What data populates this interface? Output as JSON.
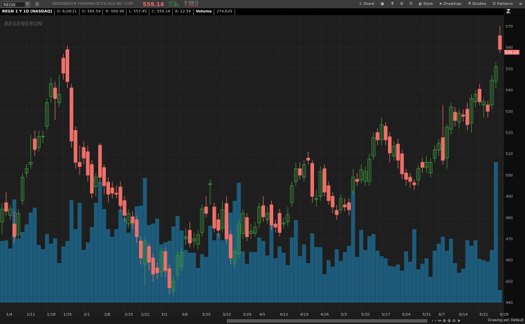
{
  "header": {
    "symbol": "REGN",
    "company": "REGENERON PHARMACEUTICALS INC COM",
    "last_price": "559.14",
    "change": "+8.14",
    "change_pct": "+1.48%",
    "bid": "B: 558.73",
    "ask": "A: 559.55",
    "tools": {
      "share": "Share",
      "style": "Style",
      "drawings": "Drawings",
      "studies": "Studies",
      "patterns": "Patterns",
      "period": "D"
    }
  },
  "info": {
    "title": "REGN 1 Y 1D [NASDAQ]",
    "date": "D: 6/28/21",
    "open": "O: 565.54",
    "high": "H: 569.99",
    "low": "L: 557.45",
    "close": "C: 559.14",
    "range": "R: 12.54",
    "volume_label": "Volume",
    "volume": "274,629"
  },
  "watermark": "REGENERON",
  "footer": {
    "drawing_set": "Drawing set: Default"
  },
  "colors": {
    "up": "#3f9a3f",
    "down": "#f0706a",
    "volume": "#1d5b7a",
    "price_tag": "#f0706a"
  },
  "chart_data": {
    "type": "candlestick",
    "price_label": "559.14",
    "ylim": [
      440,
      570
    ],
    "yticks": [
      440,
      450,
      460,
      470,
      480,
      490,
      500,
      510,
      520,
      530,
      540,
      550,
      560,
      570
    ],
    "xticks": [
      "1/4",
      "1/11",
      "1/18",
      "1/25",
      "2/1",
      "2/8",
      "2/15",
      "2/22",
      "3/1",
      "3/8",
      "3/15",
      "3/22",
      "3/29",
      "4/5",
      "4/12",
      "4/19",
      "4/26",
      "5/3",
      "5/10",
      "5/17",
      "5/24",
      "5/31",
      "6/7",
      "6/14",
      "6/21",
      "6/28"
    ],
    "grid": true,
    "dates": [
      "12/31",
      "1/4",
      "1/5",
      "1/6",
      "1/7",
      "1/8",
      "1/11",
      "1/12",
      "1/13",
      "1/14",
      "1/15",
      "1/19",
      "1/20",
      "1/21",
      "1/22",
      "1/25",
      "1/26",
      "1/27",
      "1/28",
      "1/29",
      "2/1",
      "2/2",
      "2/3",
      "2/4",
      "2/5",
      "2/8",
      "2/9",
      "2/10",
      "2/11",
      "2/12",
      "2/16",
      "2/17",
      "2/18",
      "2/19",
      "2/22",
      "2/23",
      "2/24",
      "2/25",
      "2/26",
      "3/1",
      "3/2",
      "3/3",
      "3/4",
      "3/5",
      "3/8",
      "3/9",
      "3/10",
      "3/11",
      "3/12",
      "3/15",
      "3/16",
      "3/17",
      "3/18",
      "3/19",
      "3/22",
      "3/23",
      "3/24",
      "3/25",
      "3/26",
      "3/29",
      "3/30",
      "3/31",
      "4/1",
      "4/5",
      "4/6",
      "4/7",
      "4/8",
      "4/9",
      "4/12",
      "4/13",
      "4/14",
      "4/15",
      "4/16",
      "4/19",
      "4/20",
      "4/21",
      "4/22",
      "4/23",
      "4/26",
      "4/27",
      "4/28",
      "4/29",
      "4/30",
      "5/3",
      "5/4",
      "5/5",
      "5/6",
      "5/7",
      "5/10",
      "5/11",
      "5/12",
      "5/13",
      "5/14",
      "5/17",
      "5/18",
      "5/19",
      "5/20",
      "5/21",
      "5/24",
      "5/25",
      "5/26",
      "5/27",
      "5/28",
      "6/1",
      "6/2",
      "6/3",
      "6/4",
      "6/7",
      "6/8",
      "6/9",
      "6/10",
      "6/11",
      "6/14",
      "6/15",
      "6/16",
      "6/17",
      "6/18",
      "6/21",
      "6/22",
      "6/23",
      "6/24",
      "6/25",
      "6/28"
    ],
    "open": [
      478,
      487,
      481,
      477,
      472,
      488,
      501,
      505,
      517,
      513,
      518,
      523,
      537,
      541,
      534,
      555,
      559,
      541,
      521,
      506,
      513,
      511,
      505,
      494.5,
      514,
      503.5,
      496.7,
      494,
      491.5,
      494.4,
      488,
      477,
      480.4,
      479,
      469,
      458,
      466.4,
      461,
      456.3,
      454.4,
      464,
      456,
      445.5,
      453,
      457,
      470,
      474,
      469,
      467.5,
      473,
      485,
      495.5,
      485,
      479,
      475,
      486.6,
      472,
      458.6,
      463,
      472.6,
      480,
      472.6,
      472.6,
      477.5,
      485.6,
      479,
      486,
      477,
      482,
      477,
      478,
      487,
      497,
      503,
      499,
      508,
      505.5,
      488.5,
      490,
      503,
      495,
      490,
      483.4,
      483.7,
      486,
      487,
      492.5,
      498,
      497.7,
      497,
      497,
      509,
      520,
      516.6,
      523,
      518,
      509,
      514.6,
      510,
      501,
      499,
      496.4,
      497.7,
      506,
      503.6,
      501,
      508,
      511.7,
      517.6,
      508,
      521.5,
      529.6,
      525,
      528.3,
      531,
      524.4,
      534.5,
      540.4,
      533,
      533,
      533,
      544,
      565.54
    ],
    "high": [
      487,
      492,
      486,
      483,
      484,
      501,
      505,
      519,
      521,
      521,
      521,
      536,
      546,
      544,
      547,
      557,
      561,
      543,
      523,
      514,
      516,
      514,
      507,
      501,
      515,
      505,
      499,
      497,
      495,
      497,
      490,
      484,
      483,
      481,
      471,
      471,
      468,
      463,
      459,
      466,
      466,
      458,
      452,
      464,
      466,
      475,
      478,
      473,
      474,
      486,
      490,
      498,
      487,
      482,
      488,
      490,
      474,
      466,
      479,
      484,
      482,
      477,
      478,
      487,
      490,
      485,
      488,
      479,
      484,
      480,
      485,
      497,
      506,
      506,
      507,
      511,
      507,
      493,
      504,
      505,
      497,
      492,
      486,
      491,
      489,
      489,
      503,
      501,
      505,
      504,
      510,
      520,
      522,
      527,
      525,
      520,
      516,
      517,
      512,
      503,
      501,
      498,
      505,
      508,
      509,
      508,
      514,
      517,
      533,
      524,
      534,
      532,
      531,
      531,
      534,
      538,
      540,
      543,
      536,
      535,
      547,
      553,
      569.99
    ],
    "low": [
      472,
      481,
      479,
      468,
      470,
      486,
      499,
      503,
      509,
      511,
      515,
      521,
      534,
      526,
      532,
      545,
      541,
      513,
      503,
      500,
      505,
      497,
      489,
      490,
      496,
      491,
      487,
      489,
      489,
      483,
      478,
      475,
      475,
      468,
      458,
      448,
      455,
      450,
      451,
      452,
      452,
      444,
      443,
      451,
      455,
      467,
      466,
      466,
      465,
      471,
      480,
      486,
      473,
      471,
      473,
      468,
      458,
      456,
      461,
      470,
      469,
      470,
      471,
      475,
      478,
      477,
      474,
      473,
      471,
      475,
      476,
      485,
      495,
      498,
      497,
      505,
      487,
      485,
      488,
      490,
      486,
      482,
      479,
      482,
      483,
      481,
      491,
      495,
      496,
      495,
      495,
      507,
      514,
      514,
      514,
      506,
      507,
      503,
      498,
      495,
      494,
      493,
      495,
      501,
      501,
      499,
      506,
      509,
      505,
      503,
      519,
      523,
      522,
      525,
      521,
      520,
      532,
      533,
      527,
      527,
      531,
      541,
      557.45
    ],
    "close": [
      484,
      483,
      484,
      471,
      482,
      499,
      503,
      506,
      512,
      518,
      518.3,
      534,
      543,
      536,
      538,
      548,
      544,
      516,
      506,
      504,
      508,
      500,
      491.5,
      499,
      499,
      495,
      491,
      491.5,
      491,
      485.6,
      481,
      482,
      477.5,
      471,
      461,
      469,
      459,
      453.4,
      454,
      464,
      455,
      447,
      450,
      462,
      463.5,
      471,
      468,
      470,
      472,
      484,
      482,
      496,
      475,
      474,
      483.7,
      470,
      461,
      464,
      477,
      482,
      471,
      473.6,
      475.5,
      485,
      480.4,
      482,
      476.5,
      475.5,
      473,
      477.5,
      481.4,
      495,
      503,
      500,
      505,
      507,
      490,
      489,
      501.6,
      492,
      488,
      485,
      481.4,
      489,
      485,
      483.7,
      499,
      497,
      502.6,
      501.6,
      507.5,
      517.6,
      516.6,
      523.7,
      516.6,
      510.4,
      513.6,
      507,
      500.6,
      498,
      497,
      495.4,
      503,
      503.6,
      506,
      506,
      512,
      515,
      507,
      522.5,
      532,
      525.7,
      529,
      527.7,
      523.7,
      536,
      538,
      534.5,
      534.5,
      530,
      544.6,
      551,
      559.14
    ],
    "volume": [
      1358000,
      1373000,
      1190000,
      2274000,
      1404000,
      1557000,
      1724000,
      1984000,
      2091000,
      1267000,
      1175000,
      1511000,
      1297000,
      1419000,
      870000,
      1236000,
      1358000,
      2258000,
      1618000,
      2197000,
      1160000,
      1328000,
      1663000,
      2197000,
      2655000,
      2060000,
      1618000,
      1450000,
      1618000,
      2045000,
      1862000,
      1541000,
      1831000,
      2121000,
      2136000,
      2747000,
      1709000,
      1740000,
      1846000,
      1282000,
      1328000,
      1358000,
      1679000,
      1908000,
      1587000,
      1160000,
      1099000,
      1099000,
      763000,
      1068000,
      1007000,
      1694000,
      1373000,
      1526000,
      1373000,
      1724000,
      1984000,
      2243000,
      2640000,
      1129000,
      855000,
      1114000,
      1114000,
      1434000,
      1358000,
      1038000,
      1709000,
      977000,
      1236000,
      1099000,
      824000,
      1434000,
      1816000,
      1022000,
      1282000,
      870000,
      1526000,
      1221000,
      1221000,
      626000,
      931000,
      794000,
      1175000,
      916000,
      1114000,
      1251000,
      2442000,
      1007000,
      1602000,
      1160000,
      1465000,
      1511000,
      1145000,
      1022000,
      977000,
      809000,
      794000,
      839000,
      702000,
      1129000,
      900000,
      1618000,
      732000,
      855000,
      977000,
      565000,
      1145000,
      1297000,
      1450000,
      1145000,
      1404000,
      870000,
      656000,
      748000,
      1373000,
      1251000,
      1373000,
      961000,
      931000,
      900000,
      1160000,
      3098000,
      274629
    ]
  }
}
